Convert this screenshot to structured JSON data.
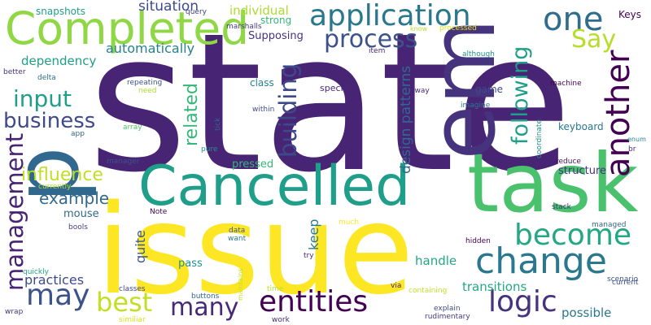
{
  "words": [
    {
      "text": "state",
      "color": "#482475",
      "rotate": false
    },
    {
      "text": "issue",
      "color": "#fde725",
      "rotate": false
    },
    {
      "text": "task",
      "color": "#4ac16d",
      "rotate": false
    },
    {
      "text": "Cancelled",
      "color": "#1f9e89",
      "rotate": false
    },
    {
      "text": "Completed",
      "color": "#8fd744",
      "rotate": false
    },
    {
      "text": "p",
      "color": "#31688e",
      "rotate": true
    },
    {
      "text": "application",
      "color": "#2a788e",
      "rotate": false
    },
    {
      "text": "one",
      "color": "#2f6c8e",
      "rotate": false
    },
    {
      "text": "process",
      "color": "#3b528b",
      "rotate": false
    },
    {
      "text": "Say",
      "color": "#b5de2b",
      "rotate": false
    },
    {
      "text": "another",
      "color": "#440154",
      "rotate": true
    },
    {
      "text": "change",
      "color": "#2a788e",
      "rotate": false
    },
    {
      "text": "become",
      "color": "#22a884",
      "rotate": false
    },
    {
      "text": "logic",
      "color": "#46337e",
      "rotate": false
    },
    {
      "text": "entities",
      "color": "#440154",
      "rotate": false
    },
    {
      "text": "may",
      "color": "#3b528b",
      "rotate": false
    },
    {
      "text": "best",
      "color": "#c2df23",
      "rotate": false
    },
    {
      "text": "many",
      "color": "#482878",
      "rotate": false
    },
    {
      "text": "input",
      "color": "#1f9e89",
      "rotate": false
    },
    {
      "text": "business",
      "color": "#3e4a89",
      "rotate": false
    },
    {
      "text": "related",
      "color": "#35b779",
      "rotate": true
    },
    {
      "text": "building",
      "color": "#3e4989",
      "rotate": true
    },
    {
      "text": "em",
      "color": "#46337e",
      "rotate": true
    },
    {
      "text": "following",
      "color": "#1f9e89",
      "rotate": true
    },
    {
      "text": "influence",
      "color": "#c2df23",
      "rotate": false
    },
    {
      "text": "example",
      "color": "#31688e",
      "rotate": false
    },
    {
      "text": "management",
      "color": "#482475",
      "rotate": true
    },
    {
      "text": "automatically",
      "color": "#26828e",
      "rotate": false
    },
    {
      "text": "dependency",
      "color": "#1f9e89",
      "rotate": false
    },
    {
      "text": "situation",
      "color": "#3e4a89",
      "rotate": false
    },
    {
      "text": "individual",
      "color": "#addc30",
      "rotate": false
    },
    {
      "text": "Supposing",
      "color": "#46337e",
      "rotate": false
    },
    {
      "text": "strong",
      "color": "#35b779",
      "rotate": false
    },
    {
      "text": "transitions",
      "color": "#22a884",
      "rotate": false
    },
    {
      "text": "possible",
      "color": "#2a788e",
      "rotate": false
    },
    {
      "text": "practices",
      "color": "#3e4a89",
      "rotate": false
    },
    {
      "text": "handle",
      "color": "#22a884",
      "rotate": false
    },
    {
      "text": "pass",
      "color": "#21918c",
      "rotate": false
    },
    {
      "text": "keyboard",
      "color": "#2a788e",
      "rotate": false
    },
    {
      "text": "structure",
      "color": "#46337e",
      "rotate": false
    },
    {
      "text": "pressed",
      "color": "#35b779",
      "rotate": false
    },
    {
      "text": "quite",
      "color": "#39568c",
      "rotate": true
    },
    {
      "text": "mouse",
      "color": "#31688e",
      "rotate": false
    },
    {
      "text": "snapshots",
      "color": "#1f9e89",
      "rotate": false
    },
    {
      "text": "Keys",
      "color": "#440154",
      "rotate": false
    },
    {
      "text": "game",
      "color": "#3e4a89",
      "rotate": false
    },
    {
      "text": "design patterns",
      "color": "#31688e",
      "rotate": true
    },
    {
      "text": "keep",
      "color": "#2a788e",
      "rotate": true
    },
    {
      "text": "class",
      "color": "#26828e",
      "rotate": false
    },
    {
      "text": "specific",
      "color": "#482878",
      "rotate": false
    },
    {
      "text": "marshalls",
      "color": "#443983",
      "rotate": false
    },
    {
      "text": "query",
      "color": "#414487",
      "rotate": false
    },
    {
      "text": "know",
      "color": "#b5de2b",
      "rotate": false
    },
    {
      "text": "processed",
      "color": "#dde318",
      "rotate": false
    },
    {
      "text": "enum",
      "color": "#26828e",
      "rotate": false
    },
    {
      "text": "item",
      "color": "#482475",
      "rotate": false
    },
    {
      "text": "although",
      "color": "#21918c",
      "rotate": false
    },
    {
      "text": "better",
      "color": "#46337e",
      "rotate": false
    },
    {
      "text": "delta",
      "color": "#2c728e",
      "rotate": false
    },
    {
      "text": "repeating",
      "color": "#3b528b",
      "rotate": false
    },
    {
      "text": "need",
      "color": "#addc30",
      "rotate": false
    },
    {
      "text": "within",
      "color": "#3e4a89",
      "rotate": false
    },
    {
      "text": "away",
      "color": "#482475",
      "rotate": false
    },
    {
      "text": "machine",
      "color": "#440154",
      "rotate": false
    },
    {
      "text": "imagine",
      "color": "#2a788e",
      "rotate": false
    },
    {
      "text": "tick",
      "color": "#31688e",
      "rotate": true
    },
    {
      "text": "coordinate",
      "color": "#21918c",
      "rotate": true
    },
    {
      "text": "app",
      "color": "#31688e",
      "rotate": false
    },
    {
      "text": "array",
      "color": "#52c569",
      "rotate": false
    },
    {
      "text": "pure",
      "color": "#21918c",
      "rotate": false
    },
    {
      "text": "manager",
      "color": "#3b528b",
      "rotate": false
    },
    {
      "text": "reduce",
      "color": "#471063",
      "rotate": false
    },
    {
      "text": "br",
      "color": "#482878",
      "rotate": false
    },
    {
      "text": "currently",
      "color": "#b5de2b",
      "rotate": false
    },
    {
      "text": "Note",
      "color": "#440154",
      "rotate": false
    },
    {
      "text": "stack",
      "color": "#46337e",
      "rotate": false
    },
    {
      "text": "managed",
      "color": "#31688e",
      "rotate": false
    },
    {
      "text": "data",
      "color": "#3b528b",
      "rotate": false
    },
    {
      "text": "want",
      "color": "#2a788e",
      "rotate": false
    },
    {
      "text": "much",
      "color": "#fde725",
      "rotate": false
    },
    {
      "text": "hidden",
      "color": "#440154",
      "rotate": false
    },
    {
      "text": "bools",
      "color": "#433e85",
      "rotate": false
    },
    {
      "text": "quickly",
      "color": "#22a884",
      "rotate": false
    },
    {
      "text": "try",
      "color": "#482878",
      "rotate": false
    },
    {
      "text": "maintains",
      "color": "#c2df23",
      "rotate": true
    },
    {
      "text": "scenario",
      "color": "#3b528b",
      "rotate": false
    },
    {
      "text": "current",
      "color": "#3b528b",
      "rotate": false
    },
    {
      "text": "classes",
      "color": "#3e4989",
      "rotate": false
    },
    {
      "text": "buttons",
      "color": "#31688e",
      "rotate": false
    },
    {
      "text": "time",
      "color": "#b5de2b",
      "rotate": false
    },
    {
      "text": "via",
      "color": "#482878",
      "rotate": false
    },
    {
      "text": "containing",
      "color": "#c2df23",
      "rotate": false
    },
    {
      "text": "explain",
      "color": "#3e4a89",
      "rotate": false
    },
    {
      "text": "rudimentary",
      "color": "#443983",
      "rotate": false
    },
    {
      "text": "wrap",
      "color": "#46337e",
      "rotate": false
    },
    {
      "text": "similiar",
      "color": "#dde318",
      "rotate": false
    },
    {
      "text": "work",
      "color": "#482878",
      "rotate": false
    }
  ]
}
